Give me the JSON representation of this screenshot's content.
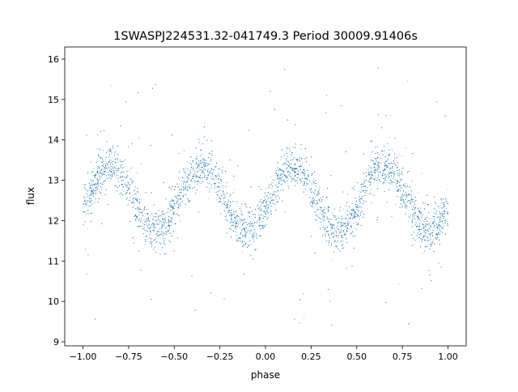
{
  "chart_data": {
    "type": "scatter",
    "title": "1SWASPJ224531.32-041749.3 Period 30009.91406s",
    "xlabel": "phase",
    "ylabel": "flux",
    "xlim": [
      -1.1,
      1.1
    ],
    "ylim": [
      8.9,
      16.3
    ],
    "xticks": [
      -1.0,
      -0.75,
      -0.5,
      -0.25,
      0.0,
      0.25,
      0.5,
      0.75,
      1.0
    ],
    "xtick_labels": [
      "−1.00",
      "−0.75",
      "−0.50",
      "−0.25",
      "0.00",
      "0.25",
      "0.50",
      "0.75",
      "1.00"
    ],
    "yticks": [
      9,
      10,
      11,
      12,
      13,
      14,
      15,
      16
    ],
    "ytick_labels": [
      "9",
      "10",
      "11",
      "12",
      "13",
      "14",
      "15",
      "16"
    ],
    "grid": false,
    "point_color": "#1f77b4",
    "series": [
      {
        "x_range": [
          -1.0,
          1.0
        ],
        "model": "sinusoid",
        "mean_flux": 12.55,
        "amplitude": 0.8,
        "cycles_per_unit_phase": 2,
        "peak_phases": [
          -0.85,
          -0.35,
          0.15,
          0.65
        ],
        "trough_phases": [
          -0.6,
          -0.1,
          0.4,
          0.9
        ],
        "scatter_sigma": 0.25,
        "outlier_range": [
          9.3,
          15.8
        ]
      }
    ]
  }
}
